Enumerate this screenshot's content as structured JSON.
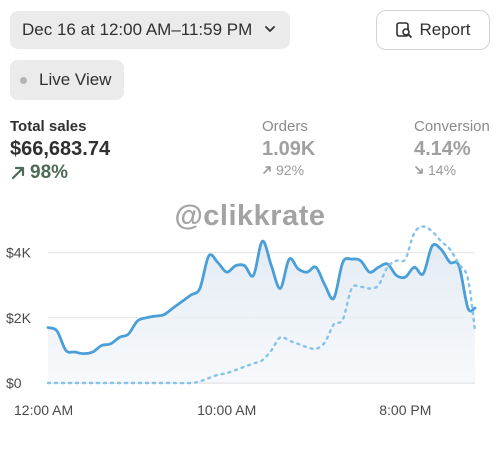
{
  "header": {
    "date_range": "Dec 16 at 12:00 AM–11:59 PM",
    "report_label": "Report",
    "live_view_label": "Live View"
  },
  "metrics": {
    "total_sales": {
      "label": "Total sales",
      "value": "$66,683.74",
      "change": "98%",
      "direction": "up"
    },
    "orders": {
      "label": "Orders",
      "value": "1.09K",
      "change": "92%",
      "direction": "up"
    },
    "conversion": {
      "label": "Conversion",
      "value": "4.14%",
      "change": "14%",
      "direction": "down"
    }
  },
  "watermark": "@clikkrate",
  "colors": {
    "accent": "#4a9fd8",
    "positive": "#4d6b57",
    "muted": "#8a8a8a"
  },
  "chart_data": {
    "type": "line",
    "x_tick_labels": [
      "12:00 AM",
      "10:00 AM",
      "8:00 PM"
    ],
    "y_tick_labels": [
      "$0",
      "$2K",
      "$4K"
    ],
    "ylim": [
      0,
      5000
    ],
    "xlim": [
      0,
      23.9
    ],
    "grid": true,
    "series": [
      {
        "style": "solid",
        "x": [
          0,
          0.5,
          1,
          1.5,
          2,
          2.5,
          3,
          3.5,
          4,
          4.5,
          5,
          5.5,
          6,
          6.5,
          7,
          7.5,
          8,
          8.5,
          9,
          9.5,
          10,
          10.5,
          11,
          11.5,
          12,
          12.5,
          13,
          13.5,
          14,
          14.5,
          15,
          15.5,
          16,
          16.5,
          17,
          17.5,
          18,
          18.5,
          19,
          19.5,
          20,
          20.5,
          21,
          21.5,
          22,
          22.5,
          23,
          23.5,
          23.9
        ],
        "values": [
          1700,
          1600,
          1000,
          950,
          900,
          950,
          1150,
          1200,
          1400,
          1500,
          1900,
          2000,
          2050,
          2100,
          2300,
          2500,
          2700,
          2900,
          3900,
          3700,
          3400,
          3600,
          3600,
          3300,
          4350,
          3600,
          2900,
          3800,
          3500,
          3400,
          3550,
          3000,
          2600,
          3700,
          3800,
          3750,
          3400,
          3550,
          3650,
          3300,
          3250,
          3550,
          3350,
          4200,
          4100,
          3700,
          3600,
          2300,
          2300
        ]
      },
      {
        "style": "dotted",
        "x": [
          0,
          1,
          2,
          3,
          4,
          5,
          6,
          7,
          8,
          8.5,
          9,
          9.5,
          10,
          10.5,
          11,
          11.5,
          12,
          12.5,
          13,
          13.5,
          14,
          14.5,
          15,
          15.5,
          16,
          16.5,
          17,
          17.5,
          18,
          18.5,
          19,
          19.5,
          20,
          20.5,
          21,
          21.5,
          22,
          22.5,
          23,
          23.5,
          23.9
        ],
        "values": [
          0,
          0,
          0,
          0,
          0,
          0,
          0,
          0,
          0,
          50,
          150,
          250,
          300,
          400,
          500,
          600,
          700,
          1000,
          1400,
          1300,
          1200,
          1100,
          1050,
          1250,
          1800,
          1950,
          2900,
          2950,
          2900,
          3000,
          3550,
          3750,
          3800,
          4600,
          4800,
          4650,
          4350,
          4100,
          3650,
          3200,
          1600
        ]
      }
    ]
  }
}
